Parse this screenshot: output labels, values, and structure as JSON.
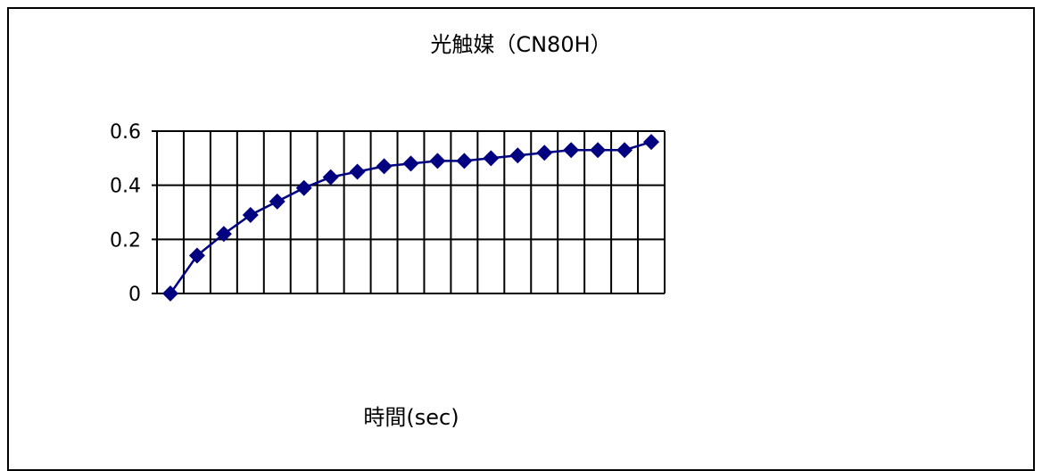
{
  "chart_data": {
    "type": "line",
    "title": "光触媒（CN80H）",
    "xlabel": "時間(sec)",
    "ylabel": "",
    "ylim": [
      0,
      0.6
    ],
    "yticks": [
      "0",
      "0.2",
      "0.4",
      "0.6"
    ],
    "grid": true,
    "legend": "none",
    "x": [
      1,
      2,
      3,
      4,
      5,
      6,
      7,
      8,
      9,
      10,
      11,
      12,
      13,
      14,
      15,
      16,
      17,
      18,
      19
    ],
    "series": [
      {
        "values": [
          0.0,
          0.14,
          0.22,
          0.29,
          0.34,
          0.39,
          0.43,
          0.45,
          0.47,
          0.48,
          0.49,
          0.49,
          0.5,
          0.51,
          0.52,
          0.53,
          0.53,
          0.53,
          0.56
        ],
        "color": "#000080",
        "marker": "diamond"
      }
    ]
  }
}
